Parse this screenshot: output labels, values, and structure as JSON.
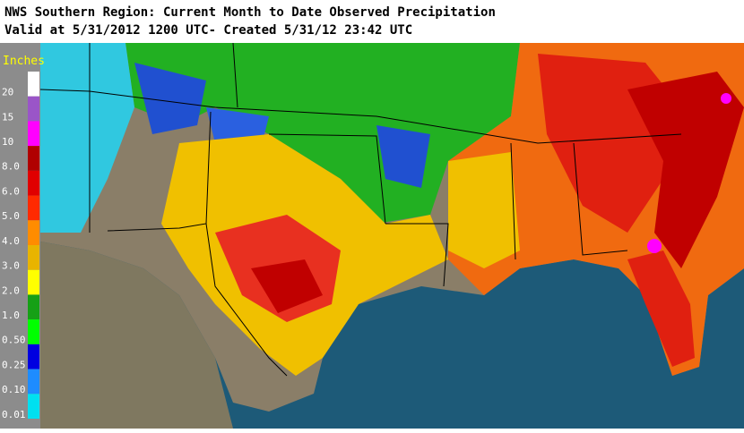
{
  "header": {
    "title": "NWS Southern Region: Current Month to Date Observed Precipitation",
    "subtitle": "Valid at 5/31/2012 1200 UTC- Created 5/31/12 23:42 UTC"
  },
  "legend": {
    "title": "Inches",
    "items": [
      {
        "label": "20",
        "color": "#ffffff"
      },
      {
        "label": "15",
        "color": "#9a55c8"
      },
      {
        "label": "10",
        "color": "#ff00ff"
      },
      {
        "label": "8.0",
        "color": "#b00000"
      },
      {
        "label": "6.0",
        "color": "#e00000"
      },
      {
        "label": "5.0",
        "color": "#ff2a00"
      },
      {
        "label": "4.0",
        "color": "#ff8c00"
      },
      {
        "label": "3.0",
        "color": "#e8b400"
      },
      {
        "label": "2.0",
        "color": "#ffff00"
      },
      {
        "label": "1.0",
        "color": "#16a016"
      },
      {
        "label": "0.50",
        "color": "#00ff00"
      },
      {
        "label": "0.25",
        "color": "#0000e0"
      },
      {
        "label": "0.10",
        "color": "#1e8cff"
      },
      {
        "label": "0.01",
        "color": "#00e0f0"
      }
    ]
  }
}
